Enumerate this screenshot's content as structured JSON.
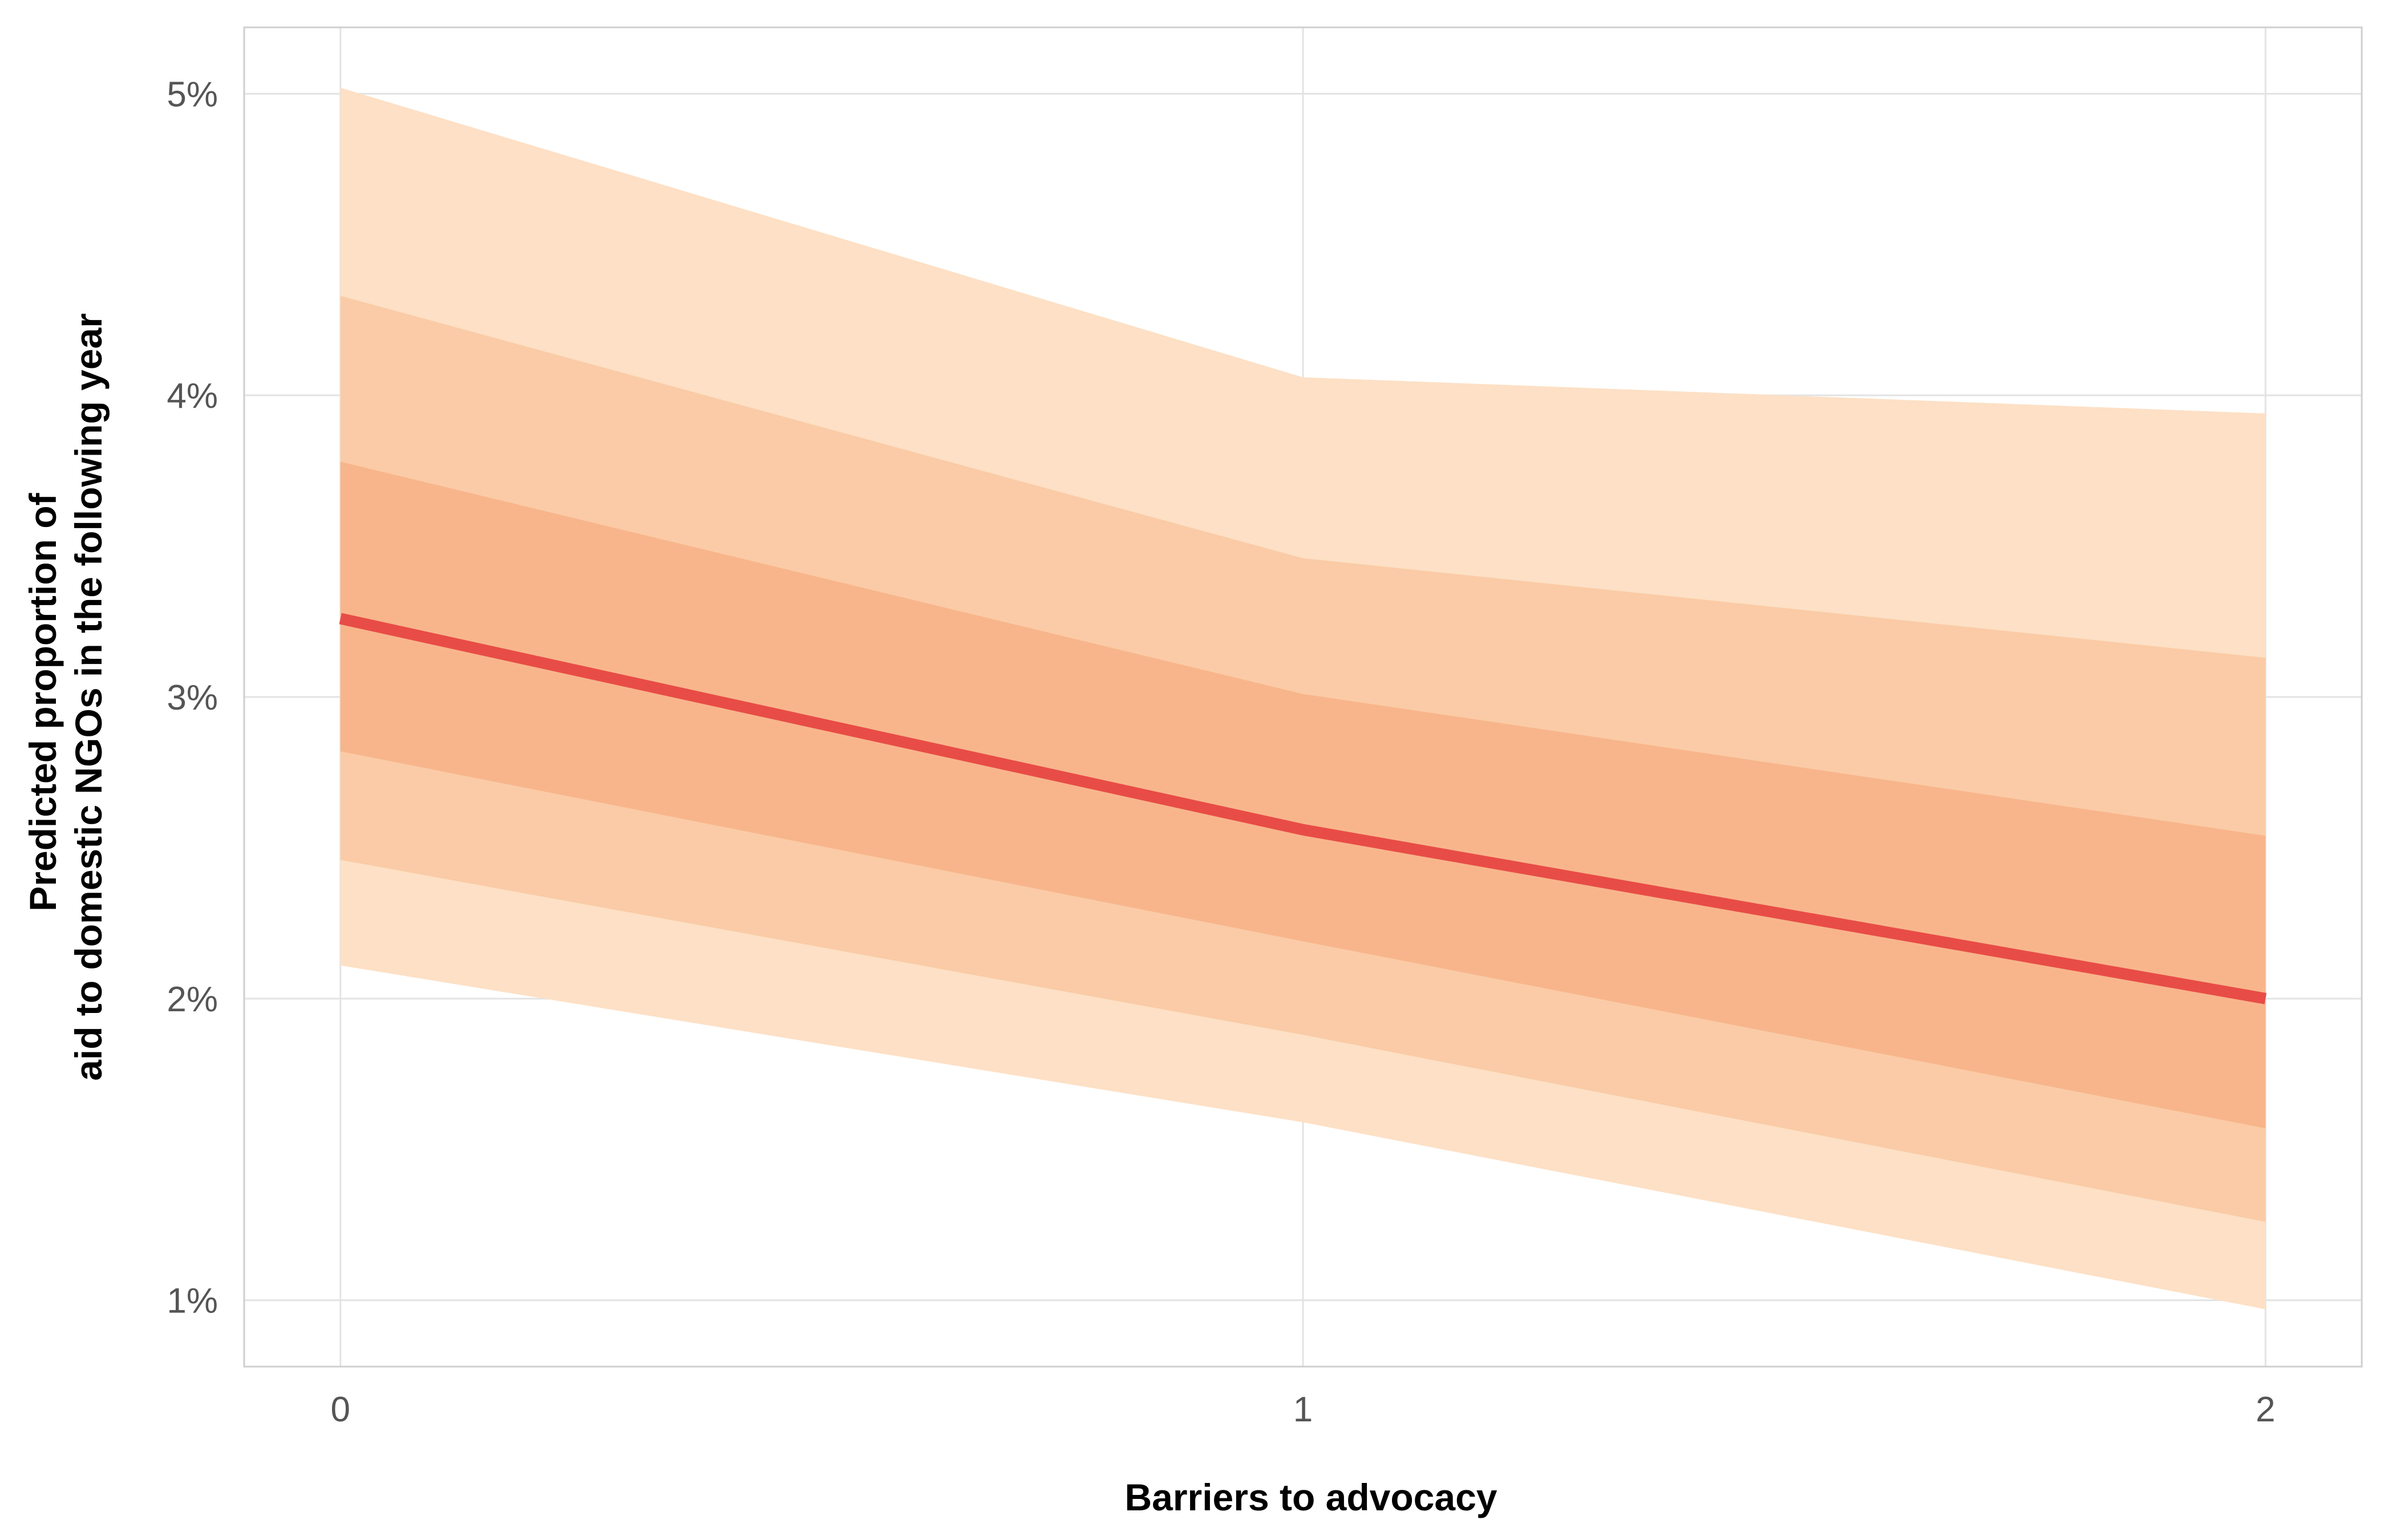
{
  "chart_data": {
    "type": "line",
    "xlabel": "Barriers to advocacy",
    "ylabel_lines": [
      "Predicted proportion of",
      "aid to domestic NGOs in the following year"
    ],
    "x_ticks": [
      "0",
      "1",
      "2"
    ],
    "y_ticks": [
      "1%",
      "2%",
      "3%",
      "4%",
      "5%"
    ],
    "xlim": [
      -0.1,
      2.1
    ],
    "ylim": [
      0.78,
      5.22
    ],
    "grid": true,
    "legend": "none",
    "series": [
      {
        "x": [
          0,
          1,
          2
        ],
        "y": [
          3.26,
          2.56,
          2.0
        ],
        "color": "#e84c46"
      }
    ],
    "intervals": [
      {
        "level": "outer",
        "x": [
          0,
          1,
          2
        ],
        "lower": [
          2.11,
          1.59,
          0.97
        ],
        "upper": [
          5.02,
          4.06,
          3.94
        ],
        "color": "#fde0c5"
      },
      {
        "level": "middle",
        "x": [
          0,
          1,
          2
        ],
        "lower": [
          2.46,
          1.88,
          1.26
        ],
        "upper": [
          4.33,
          3.46,
          3.13
        ],
        "color": "#facba6"
      },
      {
        "level": "inner",
        "x": [
          0,
          1,
          2
        ],
        "lower": [
          2.82,
          2.19,
          1.57
        ],
        "upper": [
          3.78,
          3.01,
          2.54
        ],
        "color": "#f8b58b"
      }
    ]
  }
}
